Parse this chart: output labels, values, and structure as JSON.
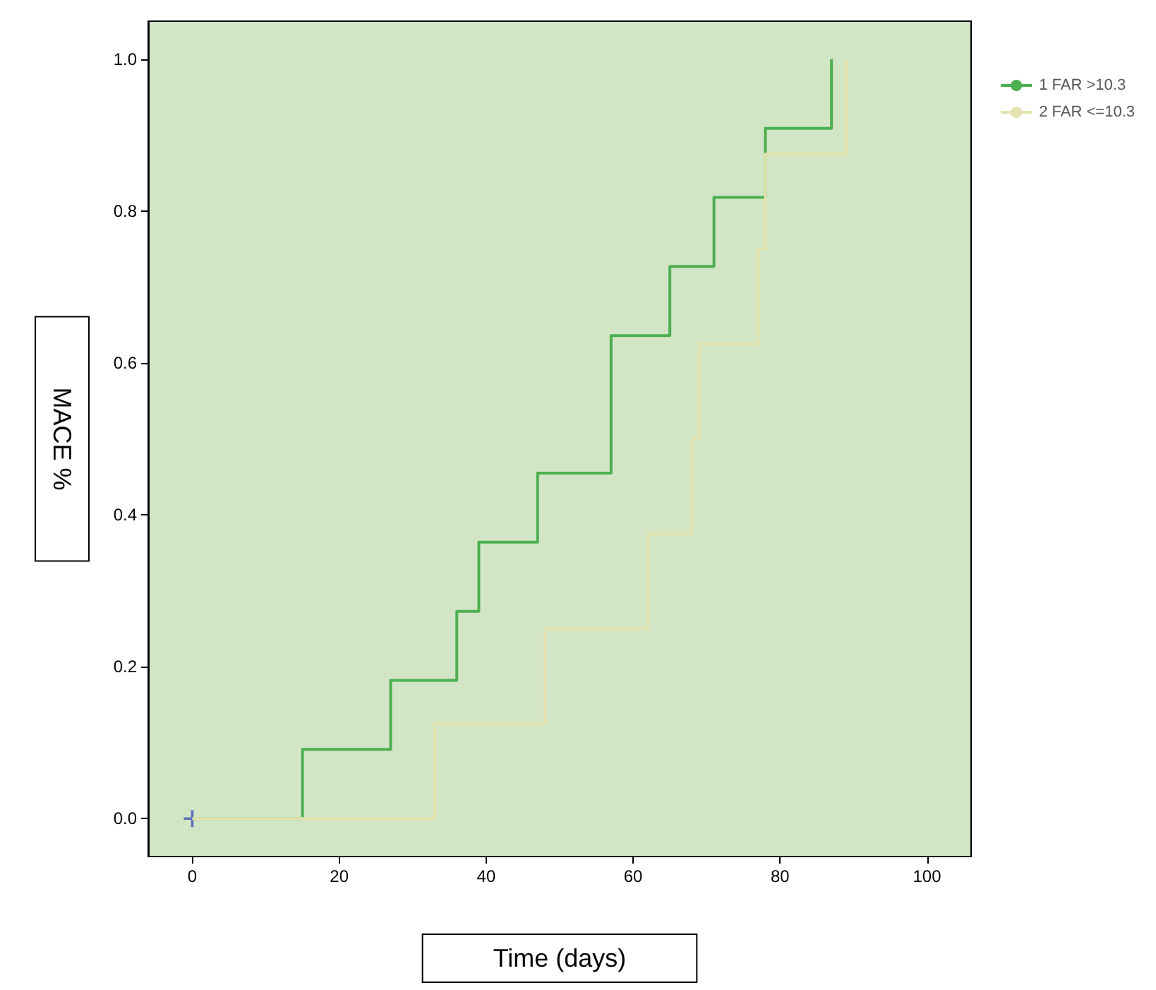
{
  "chart_data": {
    "type": "step",
    "xlabel": "Time (days)",
    "ylabel": "MACE %",
    "xlim": [
      -6,
      106
    ],
    "xticks": [
      0,
      20,
      40,
      60,
      80,
      100
    ],
    "ylim": [
      -0.05,
      1.05
    ],
    "yticks": [
      {
        "value": 0,
        "label": "0.0"
      },
      {
        "value": 0.2,
        "label": "0.2"
      },
      {
        "value": 0.4,
        "label": "0.4"
      },
      {
        "value": 0.6,
        "label": "0.6"
      },
      {
        "value": 0.8,
        "label": "0.8"
      },
      {
        "value": 1,
        "label": "1.0"
      }
    ],
    "grid": false,
    "legend": "right",
    "marker": "none",
    "line_style": "solid",
    "series": [
      {
        "name": "1 FAR >10.3",
        "color": "#4caf50",
        "x": [
          0,
          15,
          27,
          36,
          39,
          47,
          57,
          65,
          71,
          78,
          87
        ],
        "values": [
          0,
          0.091,
          0.182,
          0.273,
          0.364,
          0.455,
          0.636,
          0.727,
          0.818,
          0.909,
          1.0
        ]
      },
      {
        "name": "2 FAR <=10.3",
        "color": "#e3e3b0",
        "x": [
          0,
          33,
          48,
          62,
          68,
          69,
          77,
          78,
          89
        ],
        "values": [
          0,
          0.125,
          0.25,
          0.375,
          0.5,
          0.625,
          0.75,
          0.875,
          1.0
        ]
      },
      {
        "type": "scatter",
        "marker": "cross",
        "color": "#3f51b5",
        "x": [
          0
        ],
        "values": [
          0
        ]
      }
    ]
  }
}
